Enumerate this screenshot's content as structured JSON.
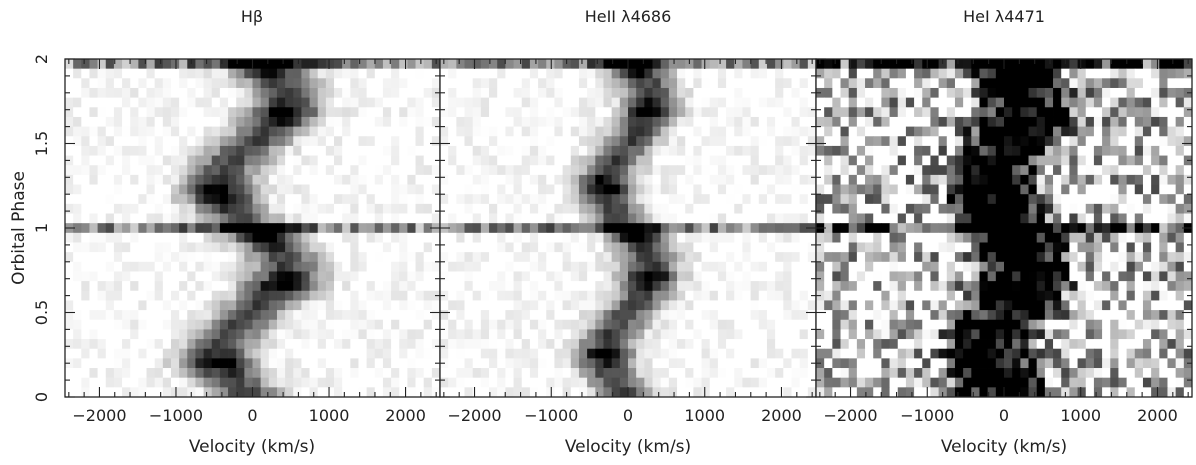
{
  "chart_data": [
    {
      "type": "heatmap",
      "title": "Hβ",
      "xlabel": "Velocity (km/s)",
      "ylabel": "Orbital Phase",
      "xlim": [
        -2450,
        2450
      ],
      "ylim": [
        0,
        2
      ],
      "xticks": [
        -2000,
        -1000,
        0,
        1000,
        2000
      ],
      "xtick_labels": [
        "−2000",
        "−1000",
        "0",
        "1000",
        "2000"
      ],
      "yticks": [
        0,
        0.5,
        1,
        1.5,
        2
      ],
      "ytick_labels": [
        "0",
        "0.5",
        "1",
        "1.5",
        "2"
      ],
      "colormap": "greyscale, dark = strong emission",
      "emission": {
        "description": "S-wave emission trail, central velocity swinging between about -450 and +450 km/s each orbit; strongest near phase 0 and 1",
        "center_velocity_kms": 0,
        "semi_amplitude_kms": 450,
        "line_width_kms": 450,
        "bright_phases": [
          0.05,
          0.33,
          0.8,
          1.05,
          1.33,
          1.8
        ],
        "full_width_dark_rows": [
          0.05,
          1.0
        ]
      }
    },
    {
      "type": "heatmap",
      "title": "HeII λ4686",
      "xlabel": "Velocity (km/s)",
      "ylabel": "",
      "xlim": [
        -2450,
        2450
      ],
      "ylim": [
        0,
        2
      ],
      "xticks": [
        -2000,
        -1000,
        0,
        1000,
        2000
      ],
      "xtick_labels": [
        "−2000",
        "−1000",
        "0",
        "1000",
        "2000"
      ],
      "colormap": "greyscale, dark = strong emission",
      "emission": {
        "description": "Narrow S-wave emission trail centred near 0 km/s, semi-amplitude about 300 km/s; strong rows near phase 0 and 1",
        "center_velocity_kms": 0,
        "semi_amplitude_kms": 300,
        "line_width_kms": 350,
        "bright_phases": [
          0.05,
          0.3,
          0.75,
          1.05,
          1.3,
          1.75
        ],
        "full_width_dark_rows": [
          0.05,
          1.0
        ]
      }
    },
    {
      "type": "heatmap",
      "title": "HeI λ4471",
      "xlabel": "Velocity (km/s)",
      "ylabel": "",
      "xlim": [
        -2450,
        2450
      ],
      "ylim": [
        0,
        2
      ],
      "xticks": [
        -2000,
        -1000,
        0,
        1000,
        2000
      ],
      "xtick_labels": [
        "−2000",
        "−1000",
        "0",
        "1000",
        "2000"
      ],
      "colormap": "greyscale, high contrast / noisy",
      "emission": {
        "description": "Noisy high-contrast map; broad dark emission band between about -500 and +600 km/s, full-width dark rows near phase 0 and 1",
        "center_velocity_kms": 50,
        "semi_amplitude_kms": 250,
        "line_width_kms": 550,
        "bright_phases": [
          0.1,
          0.4,
          0.9,
          1.1,
          1.4,
          1.9
        ],
        "full_width_dark_rows": [
          0.05,
          1.0
        ]
      }
    }
  ]
}
